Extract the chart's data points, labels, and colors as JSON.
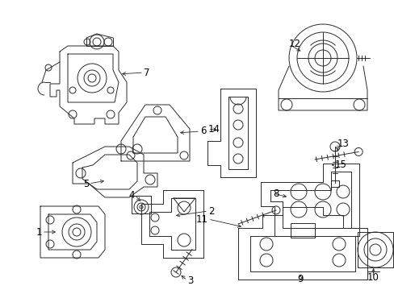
{
  "bg_color": "#ffffff",
  "line_color": "#2a2a2a",
  "fig_width": 4.89,
  "fig_height": 3.6,
  "dpi": 100,
  "label_fontsize": 8.5,
  "arrow_lw": 0.6,
  "part_lw": 0.7
}
